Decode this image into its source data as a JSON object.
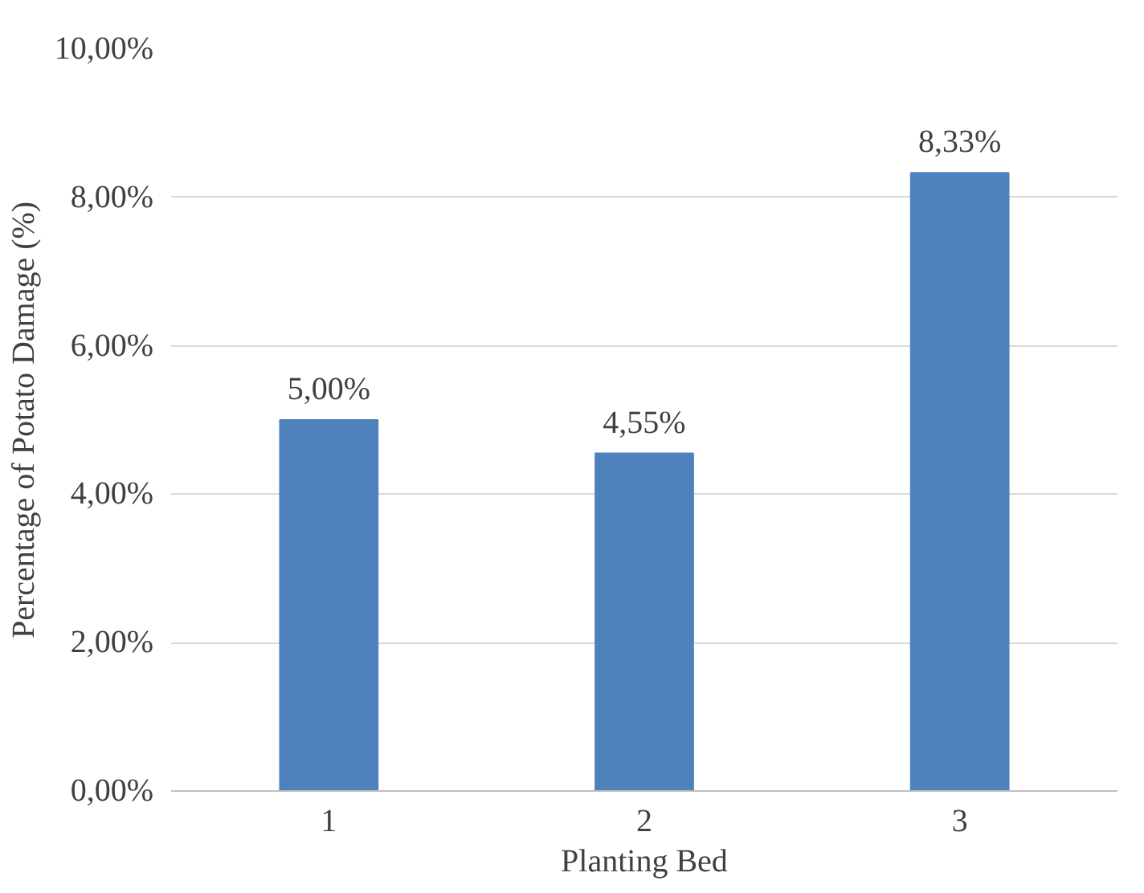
{
  "chart_data": {
    "type": "bar",
    "xlabel": "Planting Bed",
    "ylabel": "Percentage of Potato Damage (%)",
    "categories": [
      "1",
      "2",
      "3"
    ],
    "values": [
      5.0,
      4.55,
      8.33
    ],
    "color": "#4f81bd",
    "value_labels": [
      "5,00%",
      "4,55%",
      "8,33%"
    ],
    "ylim": [
      0,
      10
    ],
    "yticks": [
      {
        "value": 0,
        "label": "0,00%"
      },
      {
        "value": 2,
        "label": "2,00%"
      },
      {
        "value": 4,
        "label": "4,00%"
      },
      {
        "value": 6,
        "label": "6,00%"
      },
      {
        "value": 8,
        "label": "8,00%"
      },
      {
        "value": 10,
        "label": "10,00%"
      }
    ],
    "grid": "y"
  }
}
